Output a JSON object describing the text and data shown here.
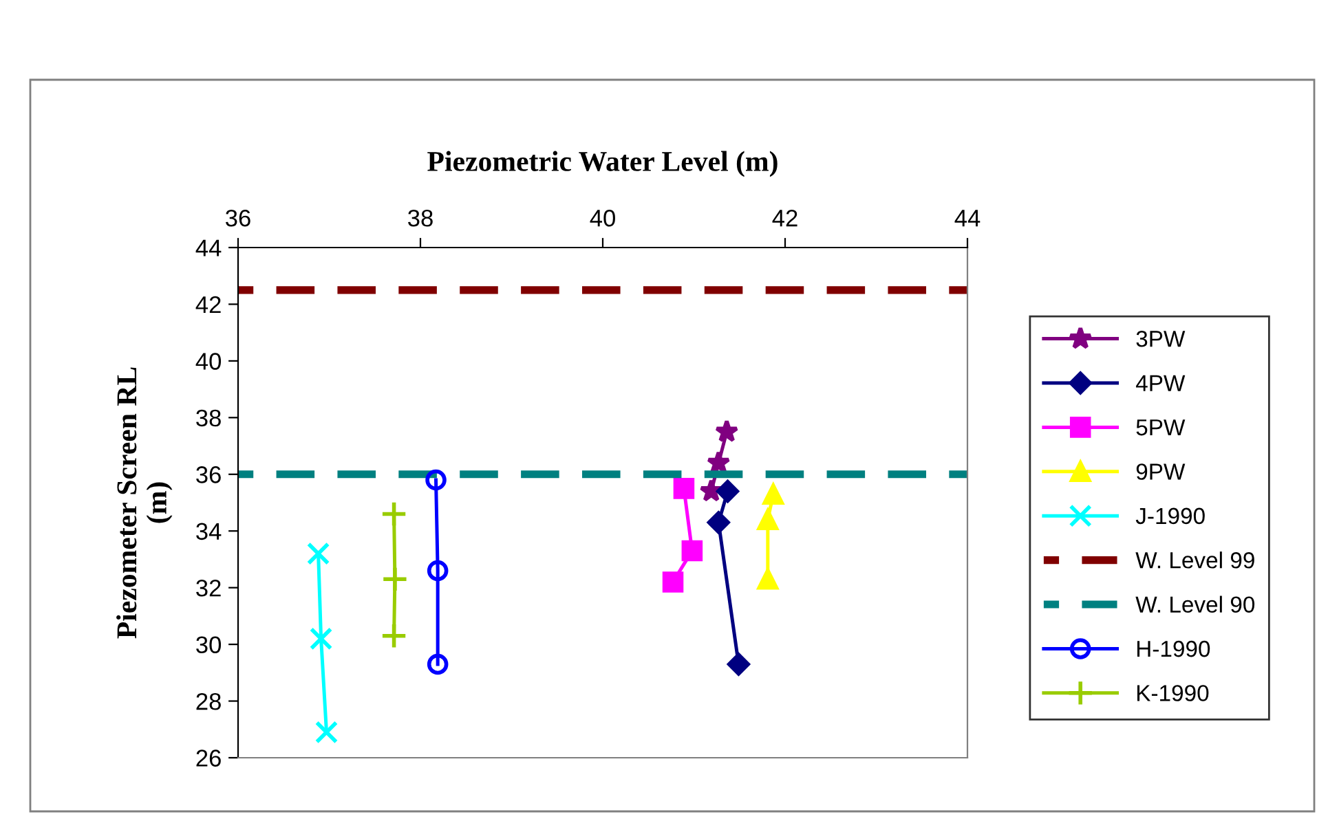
{
  "chart_data": {
    "type": "line",
    "xlabel": "Piezometric Water Level (m)",
    "ylabel": "Piezometer Screen RL\n(m)",
    "xlim": [
      36,
      44
    ],
    "xticks": [
      36,
      38,
      40,
      42,
      44
    ],
    "ylim": [
      26,
      44
    ],
    "yticks": [
      26,
      28,
      30,
      32,
      34,
      36,
      38,
      40,
      42,
      44
    ],
    "grid": false,
    "legend": "right",
    "line_style": "solid",
    "series": [
      {
        "name": "3PW",
        "color": "#800080",
        "marker": "star",
        "x": [
          41.36,
          41.27,
          41.19
        ],
        "values": [
          37.5,
          36.4,
          35.4
        ]
      },
      {
        "name": "4PW",
        "color": "#000080",
        "marker": "diamond",
        "x": [
          41.37,
          41.27,
          41.49
        ],
        "values": [
          35.4,
          34.3,
          29.3
        ]
      },
      {
        "name": "5PW",
        "color": "#ff00ff",
        "marker": "square",
        "x": [
          40.89,
          40.98,
          40.77
        ],
        "values": [
          35.5,
          33.3,
          32.2
        ]
      },
      {
        "name": "9PW",
        "color": "#ffff00",
        "marker": "triangle",
        "x": [
          41.87,
          41.81,
          41.81
        ],
        "values": [
          35.3,
          34.4,
          32.3
        ]
      },
      {
        "name": "J-1990",
        "color": "#00ffff",
        "marker": "cross",
        "x": [
          36.88,
          36.91,
          36.97
        ],
        "values": [
          33.2,
          30.2,
          26.9
        ]
      },
      {
        "name": "W. Level 99",
        "color": "#800000",
        "marker": "none",
        "line_style": "dashed",
        "x": [
          36,
          44
        ],
        "values": [
          42.5,
          42.5
        ]
      },
      {
        "name": "W. Level 90",
        "color": "#008080",
        "marker": "none",
        "line_style": "dashed",
        "x": [
          36,
          44
        ],
        "values": [
          36,
          36
        ]
      },
      {
        "name": "H-1990",
        "color": "#0000ff",
        "marker": "circle",
        "x": [
          38.17,
          38.19,
          38.19
        ],
        "values": [
          35.8,
          32.6,
          29.3
        ]
      },
      {
        "name": "K-1990",
        "color": "#99cc00",
        "marker": "plus",
        "x": [
          37.71,
          37.72,
          37.71
        ],
        "values": [
          34.6,
          32.3,
          30.3
        ]
      }
    ]
  }
}
